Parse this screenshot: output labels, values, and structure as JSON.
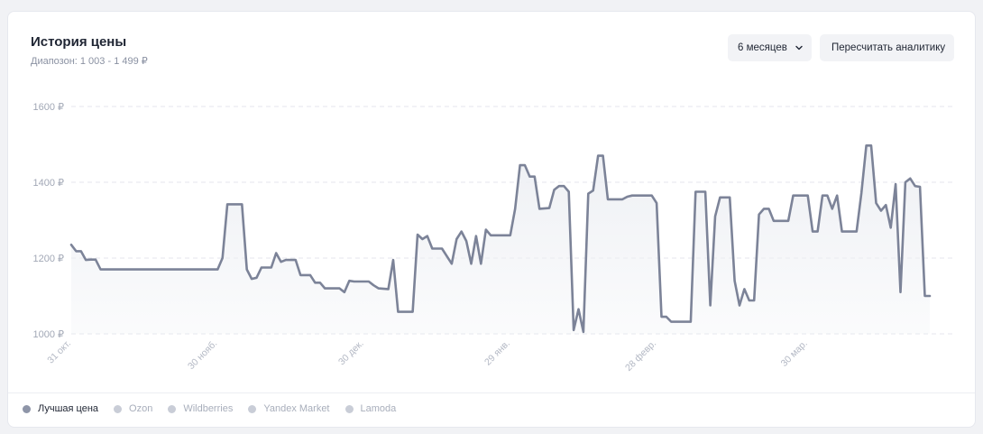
{
  "header": {
    "title": "История цены",
    "subtitle": "Диапозон: 1 003 - 1 499 ₽"
  },
  "controls": {
    "period_label": "6 месяцев",
    "period_icon": "chevron-down-icon",
    "recalc_label": "Пересчитать аналитику"
  },
  "legend": [
    {
      "label": "Лучшая цена",
      "color": "#8e95a8",
      "active": true
    },
    {
      "label": "Ozon",
      "color": "#c9cdd7",
      "active": false
    },
    {
      "label": "Wildberries",
      "color": "#c9cdd7",
      "active": false
    },
    {
      "label": "Yandex Market",
      "color": "#c9cdd7",
      "active": false
    },
    {
      "label": "Lamoda",
      "color": "#c9cdd7",
      "active": false
    }
  ],
  "chart_data": {
    "type": "line",
    "title": "История цены",
    "xlabel": "",
    "ylabel": "",
    "ylim": [
      1000,
      1600
    ],
    "y_ticks": [
      1000,
      1200,
      1400,
      1600
    ],
    "y_tick_labels": [
      "1000 ₽",
      "1200 ₽",
      "1400 ₽",
      "1600 ₽"
    ],
    "x_range": [
      "2023-10-31",
      "2024-04-29"
    ],
    "x_ticks": [
      "2023-10-31",
      "2023-11-30",
      "2023-12-30",
      "2024-01-29",
      "2024-02-28",
      "2024-03-30"
    ],
    "x_tick_labels": [
      "31 окт.",
      "30 нояб.",
      "30 дек.",
      "29 янв.",
      "28 февр.",
      "30 мар."
    ],
    "grid": true,
    "line_color": "#7c8398",
    "fill_color": "#eef0f4",
    "series": [
      {
        "name": "Лучшая цена",
        "points": [
          [
            "2023-10-31",
            1235
          ],
          [
            "2023-11-01",
            1218
          ],
          [
            "2023-11-02",
            1218
          ],
          [
            "2023-11-03",
            1195
          ],
          [
            "2023-11-04",
            1196
          ],
          [
            "2023-11-05",
            1196
          ],
          [
            "2023-11-06",
            1170
          ],
          [
            "2023-11-30",
            1170
          ],
          [
            "2023-12-01",
            1200
          ],
          [
            "2023-12-02",
            1342
          ],
          [
            "2023-12-03",
            1342
          ],
          [
            "2023-12-05",
            1342
          ],
          [
            "2023-12-06",
            1170
          ],
          [
            "2023-12-07",
            1145
          ],
          [
            "2023-12-08",
            1148
          ],
          [
            "2023-12-09",
            1175
          ],
          [
            "2023-12-11",
            1175
          ],
          [
            "2023-12-12",
            1213
          ],
          [
            "2023-12-13",
            1190
          ],
          [
            "2023-12-14",
            1195
          ],
          [
            "2023-12-16",
            1195
          ],
          [
            "2023-12-17",
            1155
          ],
          [
            "2023-12-19",
            1155
          ],
          [
            "2023-12-20",
            1135
          ],
          [
            "2023-12-21",
            1135
          ],
          [
            "2023-12-22",
            1120
          ],
          [
            "2023-12-25",
            1120
          ],
          [
            "2023-12-26",
            1110
          ],
          [
            "2023-12-27",
            1140
          ],
          [
            "2023-12-28",
            1138
          ],
          [
            "2023-12-31",
            1138
          ],
          [
            "2024-01-01",
            1128
          ],
          [
            "2024-01-02",
            1120
          ],
          [
            "2024-01-04",
            1118
          ],
          [
            "2024-01-05",
            1195
          ],
          [
            "2024-01-06",
            1058
          ],
          [
            "2024-01-09",
            1058
          ],
          [
            "2024-01-10",
            1262
          ],
          [
            "2024-01-11",
            1250
          ],
          [
            "2024-01-12",
            1258
          ],
          [
            "2024-01-13",
            1225
          ],
          [
            "2024-01-15",
            1225
          ],
          [
            "2024-01-16",
            1205
          ],
          [
            "2024-01-17",
            1185
          ],
          [
            "2024-01-18",
            1250
          ],
          [
            "2024-01-19",
            1270
          ],
          [
            "2024-01-20",
            1245
          ],
          [
            "2024-01-21",
            1185
          ],
          [
            "2024-01-22",
            1258
          ],
          [
            "2024-01-23",
            1185
          ],
          [
            "2024-01-24",
            1275
          ],
          [
            "2024-01-25",
            1260
          ],
          [
            "2024-01-29",
            1260
          ],
          [
            "2024-01-30",
            1330
          ],
          [
            "2024-01-31",
            1445
          ],
          [
            "2024-02-01",
            1445
          ],
          [
            "2024-02-02",
            1415
          ],
          [
            "2024-02-03",
            1415
          ],
          [
            "2024-02-04",
            1330
          ],
          [
            "2024-02-06",
            1332
          ],
          [
            "2024-02-07",
            1380
          ],
          [
            "2024-02-08",
            1390
          ],
          [
            "2024-02-09",
            1390
          ],
          [
            "2024-02-10",
            1375
          ],
          [
            "2024-02-11",
            1010
          ],
          [
            "2024-02-12",
            1065
          ],
          [
            "2024-02-13",
            1005
          ],
          [
            "2024-02-14",
            1370
          ],
          [
            "2024-02-15",
            1378
          ],
          [
            "2024-02-16",
            1470
          ],
          [
            "2024-02-17",
            1470
          ],
          [
            "2024-02-18",
            1355
          ],
          [
            "2024-02-21",
            1355
          ],
          [
            "2024-02-22",
            1362
          ],
          [
            "2024-02-23",
            1365
          ],
          [
            "2024-02-27",
            1365
          ],
          [
            "2024-02-28",
            1345
          ],
          [
            "2024-02-29",
            1045
          ],
          [
            "2024-03-01",
            1045
          ],
          [
            "2024-03-02",
            1032
          ],
          [
            "2024-03-06",
            1032
          ],
          [
            "2024-03-07",
            1375
          ],
          [
            "2024-03-09",
            1375
          ],
          [
            "2024-03-10",
            1075
          ],
          [
            "2024-03-11",
            1310
          ],
          [
            "2024-03-12",
            1360
          ],
          [
            "2024-03-14",
            1360
          ],
          [
            "2024-03-15",
            1140
          ],
          [
            "2024-03-16",
            1075
          ],
          [
            "2024-03-17",
            1118
          ],
          [
            "2024-03-18",
            1088
          ],
          [
            "2024-03-19",
            1088
          ],
          [
            "2024-03-20",
            1315
          ],
          [
            "2024-03-21",
            1330
          ],
          [
            "2024-03-22",
            1330
          ],
          [
            "2024-03-23",
            1298
          ],
          [
            "2024-03-26",
            1298
          ],
          [
            "2024-03-27",
            1365
          ],
          [
            "2024-03-30",
            1365
          ],
          [
            "2024-03-31",
            1270
          ],
          [
            "2024-04-01",
            1270
          ],
          [
            "2024-04-02",
            1365
          ],
          [
            "2024-04-03",
            1365
          ],
          [
            "2024-04-04",
            1330
          ],
          [
            "2024-04-05",
            1365
          ],
          [
            "2024-04-06",
            1270
          ],
          [
            "2024-04-09",
            1270
          ],
          [
            "2024-04-10",
            1372
          ],
          [
            "2024-04-11",
            1497
          ],
          [
            "2024-04-12",
            1497
          ],
          [
            "2024-04-13",
            1345
          ],
          [
            "2024-04-14",
            1325
          ],
          [
            "2024-04-15",
            1340
          ],
          [
            "2024-04-16",
            1280
          ],
          [
            "2024-04-17",
            1395
          ],
          [
            "2024-04-18",
            1110
          ],
          [
            "2024-04-19",
            1400
          ],
          [
            "2024-04-20",
            1410
          ],
          [
            "2024-04-21",
            1390
          ],
          [
            "2024-04-22",
            1388
          ],
          [
            "2024-04-23",
            1100
          ],
          [
            "2024-04-24",
            1100
          ]
        ]
      }
    ]
  }
}
